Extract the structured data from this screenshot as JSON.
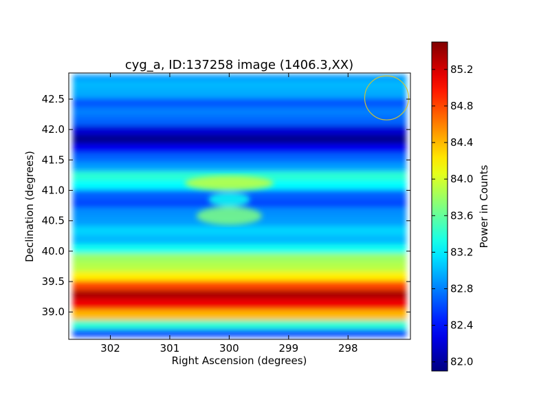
{
  "chart_data": {
    "type": "heatmap",
    "title": "cyg_a, ID:137258 image (1406.3,XX)",
    "xlabel": "Right Ascension (degrees)",
    "ylabel": "Declination (degrees)",
    "x_reversed": true,
    "xlim": [
      302.7,
      296.95
    ],
    "ylim": [
      38.55,
      42.93
    ],
    "xticks": [
      302,
      301,
      300,
      299,
      298
    ],
    "xtick_labels": [
      "302",
      "301",
      "300",
      "299",
      "298"
    ],
    "yticks": [
      39.0,
      39.5,
      40.0,
      40.5,
      41.0,
      41.5,
      42.0,
      42.5
    ],
    "ytick_labels": [
      "39.0",
      "39.5",
      "40.0",
      "40.5",
      "41.0",
      "41.5",
      "42.0",
      "42.5"
    ],
    "colorbar": {
      "label": "Power in Counts",
      "colormap": "jet",
      "range": [
        81.9,
        85.5
      ],
      "ticks": [
        82.0,
        82.4,
        82.8,
        83.2,
        83.6,
        84.0,
        84.4,
        84.8,
        85.2
      ],
      "tick_labels": [
        "82.0",
        "82.4",
        "82.8",
        "83.2",
        "83.6",
        "84.0",
        "84.4",
        "84.8",
        "85.2"
      ]
    },
    "declination_profile": [
      {
        "dec": 38.65,
        "value": 82.6
      },
      {
        "dec": 38.8,
        "value": 83.4
      },
      {
        "dec": 38.95,
        "value": 84.4
      },
      {
        "dec": 39.15,
        "value": 85.1
      },
      {
        "dec": 39.3,
        "value": 85.35
      },
      {
        "dec": 39.45,
        "value": 84.8
      },
      {
        "dec": 39.6,
        "value": 84.2
      },
      {
        "dec": 39.75,
        "value": 83.9
      },
      {
        "dec": 39.9,
        "value": 83.8
      },
      {
        "dec": 40.05,
        "value": 83.3
      },
      {
        "dec": 40.2,
        "value": 83.0
      },
      {
        "dec": 40.35,
        "value": 83.1
      },
      {
        "dec": 40.5,
        "value": 82.9
      },
      {
        "dec": 40.65,
        "value": 82.85
      },
      {
        "dec": 40.8,
        "value": 82.6
      },
      {
        "dec": 40.95,
        "value": 82.7
      },
      {
        "dec": 41.1,
        "value": 83.25
      },
      {
        "dec": 41.25,
        "value": 83.4
      },
      {
        "dec": 41.4,
        "value": 82.9
      },
      {
        "dec": 41.55,
        "value": 82.7
      },
      {
        "dec": 41.7,
        "value": 82.3
      },
      {
        "dec": 41.85,
        "value": 81.95
      },
      {
        "dec": 42.0,
        "value": 82.2
      },
      {
        "dec": 42.15,
        "value": 82.7
      },
      {
        "dec": 42.3,
        "value": 82.8
      },
      {
        "dec": 42.45,
        "value": 82.65
      },
      {
        "dec": 42.6,
        "value": 82.95
      },
      {
        "dec": 42.75,
        "value": 83.0
      },
      {
        "dec": 42.88,
        "value": 82.9
      }
    ],
    "features": [
      {
        "ra": 300.0,
        "dec": 40.58,
        "value": 83.7,
        "ra_radius": 0.55,
        "dec_radius": 0.15
      },
      {
        "ra": 300.0,
        "dec": 41.12,
        "value": 83.95,
        "ra_radius": 0.75,
        "dec_radius": 0.12
      },
      {
        "ra": 300.0,
        "dec": 40.85,
        "value": 83.3,
        "ra_radius": 0.35,
        "dec_radius": 0.12
      }
    ],
    "marker_circle": {
      "ra": 297.35,
      "dec": 42.52,
      "radius_deg": 0.37,
      "color": "#c9c23a"
    }
  }
}
